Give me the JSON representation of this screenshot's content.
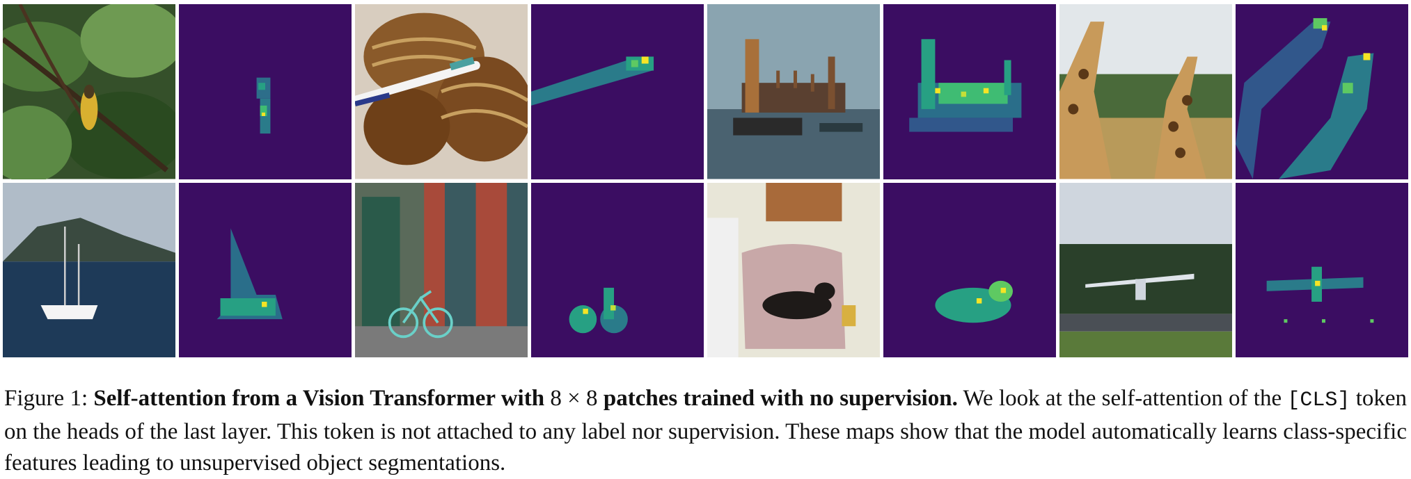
{
  "figure": {
    "label": "Figure 1:",
    "title": "Self-attention from a Vision Transformer with",
    "math": "8 × 8",
    "title_end": "patches trained with no supervision.",
    "text1": "We look at the self-attention of the",
    "token": "[CLS]",
    "text2": "token on the heads of the last layer. This token is not attached to any label nor supervision. These maps show that the model automatically learns class-specific features leading to unsupervised object segmentations."
  },
  "colors": {
    "attention_background": "#3b0d62",
    "attention_mid": "#2a8c8c",
    "attention_high": "#f5e425"
  }
}
